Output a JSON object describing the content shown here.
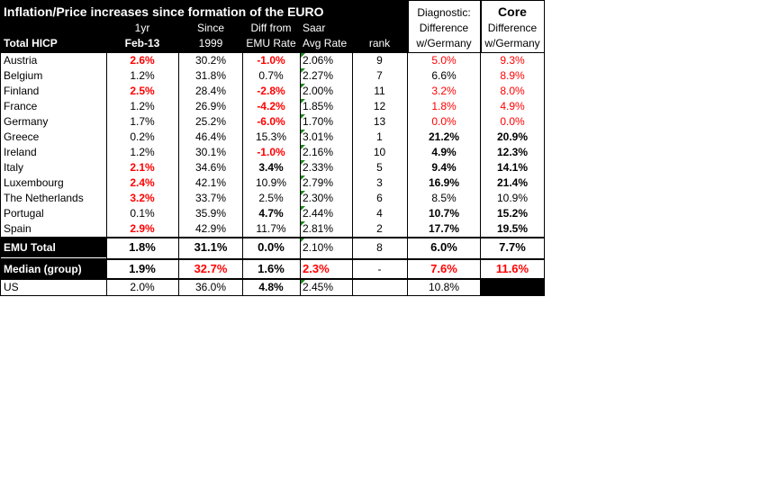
{
  "title": "Inflation/Price increases  since formation of the EURO",
  "header": {
    "row_label": "Total HICP",
    "col1_top": "1yr",
    "col1_bottom": "Feb-13",
    "col2_top": "Since",
    "col2_bottom": "1999",
    "col3_top": "Diff from",
    "col3_bottom": "EMU Rate",
    "col4_top": "Saar",
    "col4_bottom": "Avg Rate",
    "col5": "rank",
    "diag_top": "Diagnostic:",
    "diag_mid": "Difference",
    "diag_bottom": "w/Germany",
    "core_top": "Core",
    "core_mid": "Difference",
    "core_bottom": "w/Germany"
  },
  "rows": [
    {
      "name": "Austria",
      "yr": "2.6%",
      "yr_red": true,
      "since": "30.2%",
      "diff": "-1.0%",
      "diff_style": "red",
      "saar": "2.06%",
      "rank": "9",
      "diag": "5.0%",
      "diag_style": "red",
      "core": "9.3%",
      "core_style": "red"
    },
    {
      "name": "Belgium",
      "yr": "1.2%",
      "yr_red": false,
      "since": "31.8%",
      "diff": "0.7%",
      "diff_style": "",
      "saar": "2.27%",
      "rank": "7",
      "diag": "6.6%",
      "diag_style": "",
      "core": "8.9%",
      "core_style": "red"
    },
    {
      "name": "Finland",
      "yr": "2.5%",
      "yr_red": true,
      "since": "28.4%",
      "diff": "-2.8%",
      "diff_style": "red",
      "saar": "2.00%",
      "rank": "11",
      "diag": "3.2%",
      "diag_style": "red",
      "core": "8.0%",
      "core_style": "red"
    },
    {
      "name": "France",
      "yr": "1.2%",
      "yr_red": false,
      "since": "26.9%",
      "diff": "-4.2%",
      "diff_style": "red",
      "saar": "1.85%",
      "rank": "12",
      "diag": "1.8%",
      "diag_style": "red",
      "core": "4.9%",
      "core_style": "red"
    },
    {
      "name": "Germany",
      "yr": "1.7%",
      "yr_red": false,
      "since": "25.2%",
      "diff": "-6.0%",
      "diff_style": "red",
      "saar": "1.70%",
      "rank": "13",
      "diag": "0.0%",
      "diag_style": "red",
      "core": "0.0%",
      "core_style": "red"
    },
    {
      "name": "Greece",
      "yr": "0.2%",
      "yr_red": false,
      "since": "46.4%",
      "diff": "15.3%",
      "diff_style": "",
      "saar": "3.01%",
      "rank": "1",
      "diag": "21.2%",
      "diag_style": "bold",
      "core": "20.9%",
      "core_style": "bold"
    },
    {
      "name": "Ireland",
      "yr": "1.2%",
      "yr_red": false,
      "since": "30.1%",
      "diff": "-1.0%",
      "diff_style": "red",
      "saar": "2.16%",
      "rank": "10",
      "diag": "4.9%",
      "diag_style": "bold",
      "core": "12.3%",
      "core_style": "bold"
    },
    {
      "name": "Italy",
      "yr": "2.1%",
      "yr_red": true,
      "since": "34.6%",
      "diff": "3.4%",
      "diff_style": "bold",
      "saar": "2.33%",
      "rank": "5",
      "diag": "9.4%",
      "diag_style": "bold",
      "core": "14.1%",
      "core_style": "bold"
    },
    {
      "name": "Luxembourg",
      "yr": "2.4%",
      "yr_red": true,
      "since": "42.1%",
      "diff": "10.9%",
      "diff_style": "",
      "saar": "2.79%",
      "rank": "3",
      "diag": "16.9%",
      "diag_style": "bold",
      "core": "21.4%",
      "core_style": "bold"
    },
    {
      "name": "The Netherlands",
      "yr": "3.2%",
      "yr_red": true,
      "since": "33.7%",
      "diff": "2.5%",
      "diff_style": "",
      "saar": "2.30%",
      "rank": "6",
      "diag": "8.5%",
      "diag_style": "",
      "core": "10.9%",
      "core_style": ""
    },
    {
      "name": "Portugal",
      "yr": "0.1%",
      "yr_red": false,
      "since": "35.9%",
      "diff": "4.7%",
      "diff_style": "bold",
      "saar": "2.44%",
      "rank": "4",
      "diag": "10.7%",
      "diag_style": "bold",
      "core": "15.2%",
      "core_style": "bold"
    },
    {
      "name": "Spain",
      "yr": "2.9%",
      "yr_red": true,
      "since": "42.9%",
      "diff": "11.7%",
      "diff_style": "",
      "saar": "2.81%",
      "rank": "2",
      "diag": "17.7%",
      "diag_style": "bold",
      "core": "19.5%",
      "core_style": "bold"
    }
  ],
  "emu": {
    "name": "EMU Total",
    "yr": "1.8%",
    "since": "31.1%",
    "diff": "0.0%",
    "saar": "2.10%",
    "rank": "8",
    "diag": "6.0%",
    "core": "7.7%"
  },
  "median": {
    "name": "Median (group)",
    "yr": "1.9%",
    "since": "32.7%",
    "diff": "1.6%",
    "saar": "2.3%",
    "rank": "-",
    "diag": "7.6%",
    "core": "11.6%"
  },
  "us": {
    "name": "US",
    "yr": "2.0%",
    "since": "36.0%",
    "diff": "4.8%",
    "saar": "2.45%",
    "rank": "",
    "diag": "10.8%",
    "core": ""
  },
  "colors": {
    "red": "#ff0000",
    "marker": "#1a8a1a",
    "dark": "#000000"
  }
}
